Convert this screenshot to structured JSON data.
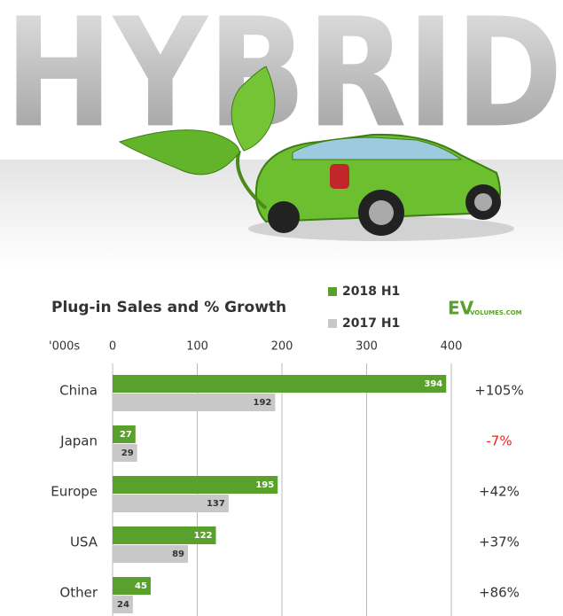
{
  "illustration": {
    "text": "HYBRID"
  },
  "chart_data": {
    "type": "hbar",
    "title": "Plug-in Sales and % Growth",
    "logo": {
      "main": "EV",
      "sub": "VOLUMES.COM"
    },
    "x_unit_label": "'000s",
    "categories": [
      "China",
      "Japan",
      "Europe",
      "USA",
      "Other"
    ],
    "series": [
      {
        "name": "2018 H1",
        "color": "#5aa02c",
        "values": [
          394,
          27,
          195,
          122,
          45
        ]
      },
      {
        "name": "2017 H1",
        "color": "#c8c8c8",
        "values": [
          192,
          29,
          137,
          89,
          24
        ]
      }
    ],
    "growth": {
      "values": [
        105,
        -7,
        42,
        37,
        86
      ],
      "value_labels": [
        "+105%",
        "-7%",
        "+42%",
        "+37%",
        "+86%"
      ],
      "colors": [
        "#333333",
        "#e8241c",
        "#333333",
        "#333333",
        "#333333"
      ]
    },
    "xlim": [
      0,
      400
    ],
    "xticks": [
      0,
      100,
      200,
      300,
      400
    ],
    "grid": true
  }
}
